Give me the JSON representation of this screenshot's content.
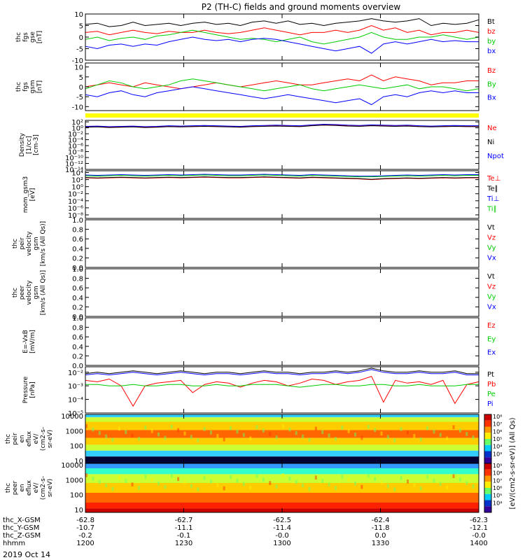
{
  "title": "P2 (TH-C) fields and ground moments overview",
  "date": "2019 Oct 14",
  "colors": {
    "black": "#000000",
    "red": "#ff0000",
    "green": "#00cc00",
    "blue": "#0000ff",
    "yellow": "#ffff00"
  },
  "chart_data": [
    {
      "id": "fgs_gse",
      "type": "line",
      "ylabel_lines": [
        "thc",
        "fgs",
        "gse",
        "[nT]"
      ],
      "ylim": [
        -10,
        10
      ],
      "yticks": [
        "-10",
        "-5",
        "0",
        "5",
        "10"
      ],
      "series": [
        {
          "name": "Bt",
          "color": "black",
          "values": [
            5.5,
            6,
            4.5,
            5,
            6.5,
            5,
            5.5,
            6,
            5,
            6,
            6.5,
            5.5,
            6,
            5,
            6.5,
            7,
            6,
            7,
            5.5,
            6,
            5,
            6,
            6.5,
            7,
            8,
            7,
            6.5,
            7,
            8,
            5,
            6,
            5.5,
            6,
            7.5
          ]
        },
        {
          "name": "bz",
          "color": "red",
          "values": [
            2,
            2.5,
            1,
            2,
            3,
            2,
            1.5,
            2.5,
            2,
            2,
            3,
            2,
            1.5,
            2,
            3,
            4,
            3,
            2,
            1,
            2,
            2,
            3,
            2,
            3,
            5,
            3,
            4,
            2,
            3,
            1,
            2,
            2,
            3,
            2
          ]
        },
        {
          "name": "by",
          "color": "green",
          "values": [
            -1,
            0,
            -1.5,
            -0.5,
            0,
            -1,
            0.5,
            1,
            2,
            3,
            2,
            1,
            0,
            -1,
            -0.5,
            -1,
            -2,
            -1,
            0,
            -2,
            -3,
            -2,
            -1,
            0,
            2,
            0,
            -1,
            -1,
            0,
            0,
            1,
            0,
            -1,
            0
          ]
        },
        {
          "name": "bx",
          "color": "blue",
          "values": [
            -4,
            -5,
            -3.5,
            -3,
            -4,
            -3,
            -3.5,
            -2,
            -1,
            0,
            -1,
            -1.5,
            -1,
            -2,
            -1,
            -0.5,
            -1,
            -2,
            -3,
            -4,
            -5,
            -6,
            -5,
            -4,
            -7,
            -3,
            -2,
            -3,
            -2,
            -1,
            -2,
            -1.5,
            -2,
            -2
          ]
        }
      ]
    },
    {
      "id": "fgs_gsm",
      "type": "line",
      "ylabel_lines": [
        "thc",
        "fgs",
        "gsm",
        "[nT]"
      ],
      "ylim": [
        -12,
        12
      ],
      "yticks": [
        "-10",
        "-5",
        "0",
        "5",
        "10"
      ],
      "series": [
        {
          "name": "Bz",
          "color": "red",
          "values": [
            0,
            1,
            2,
            1,
            0,
            2,
            1,
            0,
            -1,
            0,
            1,
            2,
            1,
            0,
            1,
            2,
            3,
            2,
            1,
            1,
            2,
            3,
            4,
            3,
            6,
            3,
            5,
            4,
            3,
            1,
            2,
            2,
            3,
            3
          ]
        },
        {
          "name": "By",
          "color": "green",
          "values": [
            -1,
            1,
            3,
            2,
            0,
            -1,
            0,
            1,
            3,
            4,
            3,
            2,
            1,
            0,
            -1,
            -2,
            -1,
            0,
            1,
            -1,
            -2,
            -1,
            0,
            1,
            0,
            -1,
            0,
            1,
            -1,
            0,
            0,
            -1,
            -2,
            -1
          ]
        },
        {
          "name": "Bx",
          "color": "blue",
          "values": [
            -4,
            -5,
            -3,
            -2,
            -4,
            -5,
            -3,
            -2,
            -1,
            0,
            -1,
            -2,
            -3,
            -4,
            -5,
            -6,
            -5,
            -4,
            -5,
            -6,
            -7,
            -8,
            -7,
            -6,
            -9,
            -5,
            -4,
            -5,
            -3,
            -2,
            -3,
            -2,
            -3,
            -3
          ]
        }
      ]
    },
    {
      "id": "density",
      "type": "line",
      "ylabel_lines": [
        "Density",
        "[1/cc]",
        "[cm-3]"
      ],
      "ylog": true,
      "ylim": [
        -14,
        2.5
      ],
      "yticks": [
        "10²",
        "10⁰",
        "10⁻²",
        "10⁻⁴",
        "10⁻⁶",
        "10⁻⁸",
        "10⁻¹⁰",
        "10⁻¹²",
        "10⁻¹⁴"
      ],
      "ytick_vals": [
        2,
        0,
        -2,
        -4,
        -6,
        -8,
        -10,
        -12,
        -14
      ],
      "series": [
        {
          "name": "Ne",
          "color": "red",
          "values": [
            0.3,
            0.4,
            0.2,
            0.3,
            0.4,
            0.2,
            0.3,
            0.5,
            0.4,
            0.5,
            0.6,
            0.5,
            0.4,
            0.3,
            0.5,
            0.6,
            0.7,
            0.6,
            0.5,
            0.8,
            1.0,
            0.9,
            0.7,
            0.6,
            0.8,
            0.7,
            0.6,
            0.7,
            0.5,
            0.4,
            0.5,
            0.6,
            0.5,
            0.5
          ]
        },
        {
          "name": "Ni",
          "color": "black",
          "values": [
            0.2,
            0.3,
            0.1,
            0.2,
            0.3,
            0.1,
            0.2,
            0.4,
            0.3,
            0.4,
            0.5,
            0.4,
            0.3,
            0.2,
            0.4,
            0.5,
            0.6,
            0.5,
            0.4,
            0.7,
            0.9,
            0.8,
            0.6,
            0.5,
            0.7,
            0.6,
            0.5,
            0.6,
            0.4,
            0.3,
            0.4,
            0.5,
            0.4,
            0.4
          ]
        },
        {
          "name": "Npot",
          "color": "blue",
          "values": [
            0.5,
            0.6,
            0.4,
            0.5,
            0.6,
            0.4,
            0.5,
            0.7,
            0.6,
            0.7,
            0.8,
            0.7,
            0.6,
            0.5,
            0.7,
            0.8,
            0.9,
            0.8,
            0.7,
            1.0,
            1.2,
            1.1,
            0.9,
            0.8,
            1.0,
            0.9,
            0.8,
            0.9,
            0.7,
            0.6,
            0.7,
            0.8,
            0.7,
            0.7
          ]
        }
      ]
    },
    {
      "id": "temperature",
      "type": "line",
      "ylabel_lines": [
        "mom_gsm3",
        "[eV]"
      ],
      "ylog": true,
      "ylim": [
        -9,
        4.5
      ],
      "yticks": [
        "10⁴",
        "10²",
        "10⁰",
        "10⁻²",
        "10⁻⁴",
        "10⁻⁶",
        "10⁻⁸"
      ],
      "ytick_vals": [
        4,
        2,
        0,
        -2,
        -4,
        -6,
        -8
      ],
      "series": [
        {
          "name": "Te⊥",
          "color": "red",
          "values": [
            2.5,
            2.4,
            2.5,
            2.6,
            2.5,
            2.4,
            2.5,
            2.6,
            2.5,
            2.6,
            2.7,
            2.6,
            2.5,
            2.5,
            2.6,
            2.7,
            2.6,
            2.5,
            2.4,
            2.6,
            2.5,
            2.4,
            2.3,
            2.2,
            2.0,
            2.2,
            2.3,
            2.4,
            2.3,
            2.4,
            2.5,
            2.4,
            2.5,
            2.5
          ]
        },
        {
          "name": "Te∥",
          "color": "black",
          "values": [
            2.6,
            2.5,
            2.6,
            2.7,
            2.6,
            2.5,
            2.6,
            2.7,
            2.6,
            2.7,
            2.8,
            2.7,
            2.6,
            2.6,
            2.7,
            2.8,
            2.7,
            2.6,
            2.5,
            2.7,
            2.6,
            2.5,
            2.4,
            2.3,
            2.1,
            2.3,
            2.4,
            2.5,
            2.4,
            2.5,
            2.6,
            2.5,
            2.6,
            2.6
          ]
        },
        {
          "name": "Ti⊥",
          "color": "blue",
          "values": [
            3.3,
            3.2,
            3.3,
            3.4,
            3.3,
            3.2,
            3.3,
            3.4,
            3.3,
            3.4,
            3.5,
            3.4,
            3.3,
            3.3,
            3.4,
            3.5,
            3.4,
            3.3,
            3.2,
            3.4,
            3.3,
            3.2,
            3.1,
            3.0,
            3.0,
            3.1,
            3.2,
            3.3,
            3.2,
            3.3,
            3.4,
            3.3,
            3.4,
            3.4
          ]
        },
        {
          "name": "Ti∥",
          "color": "green",
          "values": [
            3.1,
            3.0,
            3.1,
            3.2,
            3.1,
            3.0,
            3.1,
            3.2,
            3.1,
            3.2,
            3.3,
            3.2,
            3.1,
            3.1,
            3.2,
            3.3,
            3.2,
            3.1,
            3.0,
            3.2,
            3.1,
            3.0,
            2.9,
            2.8,
            2.8,
            2.9,
            3.0,
            3.1,
            3.0,
            3.1,
            3.2,
            3.1,
            3.2,
            3.2
          ]
        }
      ]
    },
    {
      "id": "peir_velocity",
      "type": "line",
      "ylabel_lines": [
        "thc",
        "peir",
        "velocity",
        "gsm",
        "[km/s (All Qs)]"
      ],
      "ylim": [
        0,
        1
      ],
      "yticks": [
        "1.0",
        "0.8",
        "0.6",
        "0.4",
        "0.2",
        "0.0"
      ],
      "ytick_vals": [
        1,
        0.8,
        0.6,
        0.4,
        0.2,
        0
      ],
      "legend": [
        {
          "name": "Vt",
          "color": "black"
        },
        {
          "name": "Vz",
          "color": "red"
        },
        {
          "name": "Vy",
          "color": "green"
        },
        {
          "name": "Vx",
          "color": "blue"
        }
      ]
    },
    {
      "id": "peer_velocity",
      "type": "line",
      "ylabel_lines": [
        "thc",
        "peer",
        "velocity",
        "gsm",
        "[km/s (All Qs)]"
      ],
      "ylim": [
        0,
        1
      ],
      "yticks": [
        "1.0",
        "0.8",
        "0.6",
        "0.4",
        "0.2",
        "0.0"
      ],
      "ytick_vals": [
        1,
        0.8,
        0.6,
        0.4,
        0.2,
        0
      ],
      "legend": [
        {
          "name": "Vt",
          "color": "black"
        },
        {
          "name": "Vz",
          "color": "red"
        },
        {
          "name": "Vy",
          "color": "green"
        },
        {
          "name": "Vx",
          "color": "blue"
        }
      ]
    },
    {
      "id": "efield",
      "type": "line",
      "ylabel_lines": [
        "E=-VxB",
        "[mV/m]"
      ],
      "ylim": [
        0,
        1
      ],
      "yticks": [
        "1.0",
        "0.8",
        "0.6",
        "0.4",
        "0.2",
        "0.0"
      ],
      "ytick_vals": [
        1,
        0.8,
        0.6,
        0.4,
        0.2,
        0
      ],
      "legend": [
        {
          "name": "Ez",
          "color": "red"
        },
        {
          "name": "Ey",
          "color": "green"
        },
        {
          "name": "Ex",
          "color": "blue"
        }
      ]
    },
    {
      "id": "pressure",
      "type": "line",
      "ylabel_lines": [
        "Pressure",
        "[nPa]"
      ],
      "ylog": true,
      "ylim": [
        -5,
        -1.6
      ],
      "yticks": [
        "10⁻²",
        "10⁻³",
        "10⁻⁴",
        "10⁻⁵"
      ],
      "ytick_vals": [
        -2,
        -3,
        -4,
        -5
      ],
      "series": [
        {
          "name": "Pt",
          "color": "black",
          "values": [
            -2.1,
            -2.0,
            -2.1,
            -2.0,
            -1.9,
            -2.0,
            -2.1,
            -2.0,
            -1.9,
            -2.0,
            -2.1,
            -2.0,
            -2.0,
            -2.1,
            -2.0,
            -1.9,
            -2.0,
            -2.0,
            -2.1,
            -2.0,
            -2.0,
            -1.9,
            -2.0,
            -1.9,
            -1.7,
            -1.9,
            -2.0,
            -2.0,
            -1.9,
            -2.0,
            -2.0,
            -1.9,
            -2.1,
            -2.1
          ]
        },
        {
          "name": "Pb",
          "color": "red",
          "values": [
            -2.6,
            -2.7,
            -2.5,
            -3.0,
            -4.5,
            -3.0,
            -2.8,
            -2.7,
            -2.6,
            -3.5,
            -2.9,
            -2.7,
            -2.8,
            -3.1,
            -2.8,
            -2.6,
            -2.7,
            -3.0,
            -2.8,
            -2.5,
            -2.6,
            -2.9,
            -2.7,
            -2.6,
            -2.3,
            -4.2,
            -2.6,
            -2.8,
            -2.7,
            -2.9,
            -2.6,
            -4.3,
            -2.9,
            -2.7
          ]
        },
        {
          "name": "Pe",
          "color": "green",
          "values": [
            -2.9,
            -2.9,
            -3.0,
            -3.0,
            -2.9,
            -3.0,
            -3.0,
            -2.9,
            -2.9,
            -3.0,
            -3.0,
            -2.9,
            -3.0,
            -3.0,
            -2.9,
            -2.9,
            -2.9,
            -3.0,
            -3.1,
            -3.0,
            -2.9,
            -2.9,
            -3.0,
            -3.0,
            -2.9,
            -2.9,
            -3.0,
            -3.0,
            -2.9,
            -3.0,
            -3.0,
            -3.0,
            -2.9,
            -2.9
          ]
        },
        {
          "name": "Pi",
          "color": "blue",
          "values": [
            -2.2,
            -2.1,
            -2.2,
            -2.1,
            -2.0,
            -2.1,
            -2.2,
            -2.1,
            -2.0,
            -2.1,
            -2.2,
            -2.1,
            -2.1,
            -2.2,
            -2.1,
            -2.0,
            -2.1,
            -2.1,
            -2.2,
            -2.1,
            -2.1,
            -2.0,
            -2.1,
            -2.0,
            -1.8,
            -2.0,
            -2.1,
            -2.1,
            -2.0,
            -2.1,
            -2.1,
            -2.0,
            -2.2,
            -2.2
          ]
        }
      ]
    },
    {
      "id": "peir_eflux",
      "type": "heatmap",
      "ylabel_lines": [
        "thc",
        "peir",
        "en",
        "eflux",
        "eV/",
        "(cm2-s-",
        "sr-eV)"
      ],
      "yticks": [
        "10000",
        "1000",
        "100",
        "10"
      ],
      "ytick_vals": [
        4,
        3,
        2,
        1
      ],
      "ylog": true,
      "ylim": [
        0.8,
        4.1
      ],
      "colorbar_ticks": [
        "10⁸",
        "10⁷",
        "10⁶",
        "10⁵",
        "10⁴",
        "10³"
      ]
    },
    {
      "id": "peer_eflux",
      "type": "heatmap",
      "ylabel_lines": [
        "thc",
        "peer",
        "en",
        "eflux",
        "eV/",
        "(cm2-s-",
        "sr-eV)"
      ],
      "yticks": [
        "10000",
        "1000",
        "100",
        "10"
      ],
      "ytick_vals": [
        4,
        3,
        2,
        1
      ],
      "ylog": true,
      "ylim": [
        0.8,
        4.1
      ],
      "colorbar_ticks": [
        "10⁹",
        "10⁸",
        "10⁷",
        "10⁶",
        "10⁵",
        "10⁴"
      ]
    }
  ],
  "right_legends": {
    "fgs_gse": [
      {
        "name": "Bt",
        "color": "black"
      },
      {
        "name": "bz",
        "color": "red"
      },
      {
        "name": "by",
        "color": "green"
      },
      {
        "name": "bx",
        "color": "blue"
      }
    ],
    "fgs_gsm": [
      {
        "name": "Bz",
        "color": "red"
      },
      {
        "name": "By",
        "color": "green"
      },
      {
        "name": "Bx",
        "color": "blue"
      }
    ],
    "density": [
      {
        "name": "Ne",
        "color": "red"
      },
      {
        "name": "Ni",
        "color": "black"
      },
      {
        "name": "Npot",
        "color": "blue"
      }
    ],
    "temperature": [
      {
        "name": "Te⊥",
        "color": "red"
      },
      {
        "name": "Te∥",
        "color": "black"
      },
      {
        "name": "Ti⊥",
        "color": "blue"
      },
      {
        "name": "Ti∥",
        "color": "green"
      }
    ],
    "pressure": [
      {
        "name": "Pt",
        "color": "black"
      },
      {
        "name": "Pb",
        "color": "red"
      },
      {
        "name": "Pe",
        "color": "green"
      },
      {
        "name": "Pi",
        "color": "blue"
      }
    ]
  },
  "colorbar_label": "[eV/(cm2-s-sr-eV)] (All Qs)",
  "x_axis": {
    "rows": [
      {
        "label": "thc_X-GSM",
        "values": [
          "-62.8",
          "-62.7",
          "-62.5",
          "-62.4",
          "-62.3"
        ]
      },
      {
        "label": "thc_Y-GSM",
        "values": [
          "-10.7",
          "-11.1",
          "-11.4",
          "-11.8",
          "-12.1"
        ]
      },
      {
        "label": "thc_Z-GSM",
        "values": [
          "-0.2",
          "-0.1",
          "-0.0",
          "0.0",
          "-0.0"
        ]
      },
      {
        "label": "hhmm",
        "values": [
          "1200",
          "1230",
          "1300",
          "1330",
          "1400"
        ]
      }
    ]
  }
}
